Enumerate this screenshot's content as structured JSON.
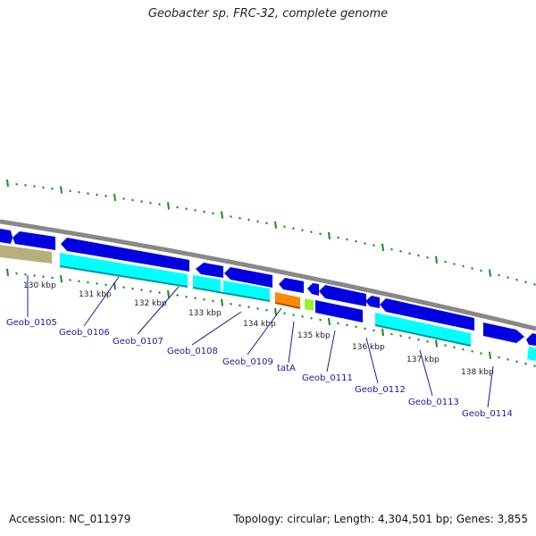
{
  "title": "Geobacter sp. FRC-32, complete genome",
  "footer": {
    "accession": "Accession: NC_011979",
    "topology": "Topology: circular; Length: 4,304,501 bp; Genes: 3,855"
  },
  "ticks": [
    "130 kbp",
    "131 kbp",
    "132 kbp",
    "133 kbp",
    "134 kbp",
    "135 kbp",
    "136 kbp",
    "137 kbp",
    "138 kbp"
  ],
  "genes": [
    "Geob_0105",
    "Geob_0106",
    "Geob_0107",
    "Geob_0108",
    "Geob_0109",
    "tatA",
    "Geob_0111",
    "Geob_0112",
    "Geob_0113",
    "Geob_0114"
  ],
  "colors": {
    "backbone": "#888888",
    "cds_forward": "#0000e0",
    "cds_cyan": "#00ffff",
    "orange": "#ff8800",
    "lime": "#99ee33",
    "olive": "#b8b07a",
    "tick": "#1a8a1a",
    "label": "#1a1aa0"
  }
}
